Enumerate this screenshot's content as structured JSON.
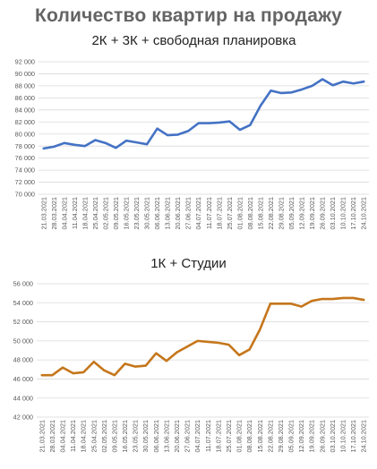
{
  "header": {
    "title": "Количество квартир на продажу",
    "chart1_subtitle": "2К + 3К + свободная планировка",
    "chart2_subtitle": "1К + Студии"
  },
  "colors": {
    "series1": "#4472C4",
    "series2": "#C5761B",
    "grid": "#d9d9d9",
    "tick_text": "#595959"
  },
  "chart_data": [
    {
      "type": "line",
      "title": "2К + 3К + свободная планировка",
      "x": [
        "21.03.2021",
        "28.03.2021",
        "04.04.2021",
        "11.04.2021",
        "18.04.2021",
        "25.04.2021",
        "02.05.2021",
        "09.05.2021",
        "16.05.2021",
        "23.05.2021",
        "30.05.2021",
        "06.06.2021",
        "13.06.2021",
        "20.06.2021",
        "27.06.2021",
        "04.07.2021",
        "11.07.2021",
        "18.07.2021",
        "25.07.2021",
        "01.08.2021",
        "08.08.2021",
        "15.08.2021",
        "22.08.2021",
        "29.08.2021",
        "05.09.2021",
        "12.09.2021",
        "19.09.2021",
        "26.09.2021",
        "03.10.2021",
        "10.10.2021",
        "17.10.2021",
        "24.10.2021"
      ],
      "series": [
        {
          "values": [
            77600,
            77900,
            78500,
            78200,
            78000,
            79000,
            78500,
            77700,
            78900,
            78600,
            78300,
            80900,
            79800,
            79900,
            80500,
            81800,
            81800,
            81900,
            82100,
            80700,
            81500,
            84700,
            87200,
            86800,
            86900,
            87400,
            88000,
            89100,
            88100,
            88700,
            88400,
            88700
          ]
        }
      ],
      "yticks": [
        "70 000",
        "72 000",
        "74 000",
        "76 000",
        "78 000",
        "80 000",
        "82 000",
        "84 000",
        "86 000",
        "88 000",
        "90 000",
        "92 000"
      ],
      "ylim": [
        70000,
        92000
      ],
      "grid": true,
      "legend": "none"
    },
    {
      "type": "line",
      "title": "1К + Студии",
      "x": [
        "21.03.2021",
        "28.03.2021",
        "04.04.2021",
        "11.04.2021",
        "18.04.2021",
        "25.04.2021",
        "02.05.2021",
        "09.05.2021",
        "16.05.2021",
        "23.05.2021",
        "30.05.2021",
        "06.06.2021",
        "13.06.2021",
        "20.06.2021",
        "27.06.2021",
        "04.07.2021",
        "11.07.2021",
        "18.07.2021",
        "25.07.2021",
        "01.08.2021",
        "08.08.2021",
        "15.08.2021",
        "22.08.2021",
        "29.08.2021",
        "05.09.2021",
        "12.09.2021",
        "19.09.2021",
        "26.09.2021",
        "03.10.2021",
        "10.10.2021",
        "17.10.2021",
        "24.10.2021"
      ],
      "series": [
        {
          "values": [
            46400,
            46400,
            47200,
            46600,
            46700,
            47800,
            46900,
            46400,
            47600,
            47300,
            47400,
            48700,
            47900,
            48800,
            49400,
            50000,
            49900,
            49800,
            49600,
            48500,
            49100,
            51200,
            53900,
            53900,
            53900,
            53600,
            54200,
            54400,
            54400,
            54500,
            54500,
            54300
          ]
        }
      ],
      "yticks": [
        "42 000",
        "44 000",
        "46 000",
        "48 000",
        "50 000",
        "52 000",
        "54 000",
        "56 000"
      ],
      "ylim": [
        42000,
        56000
      ],
      "grid": true,
      "legend": "none"
    }
  ]
}
